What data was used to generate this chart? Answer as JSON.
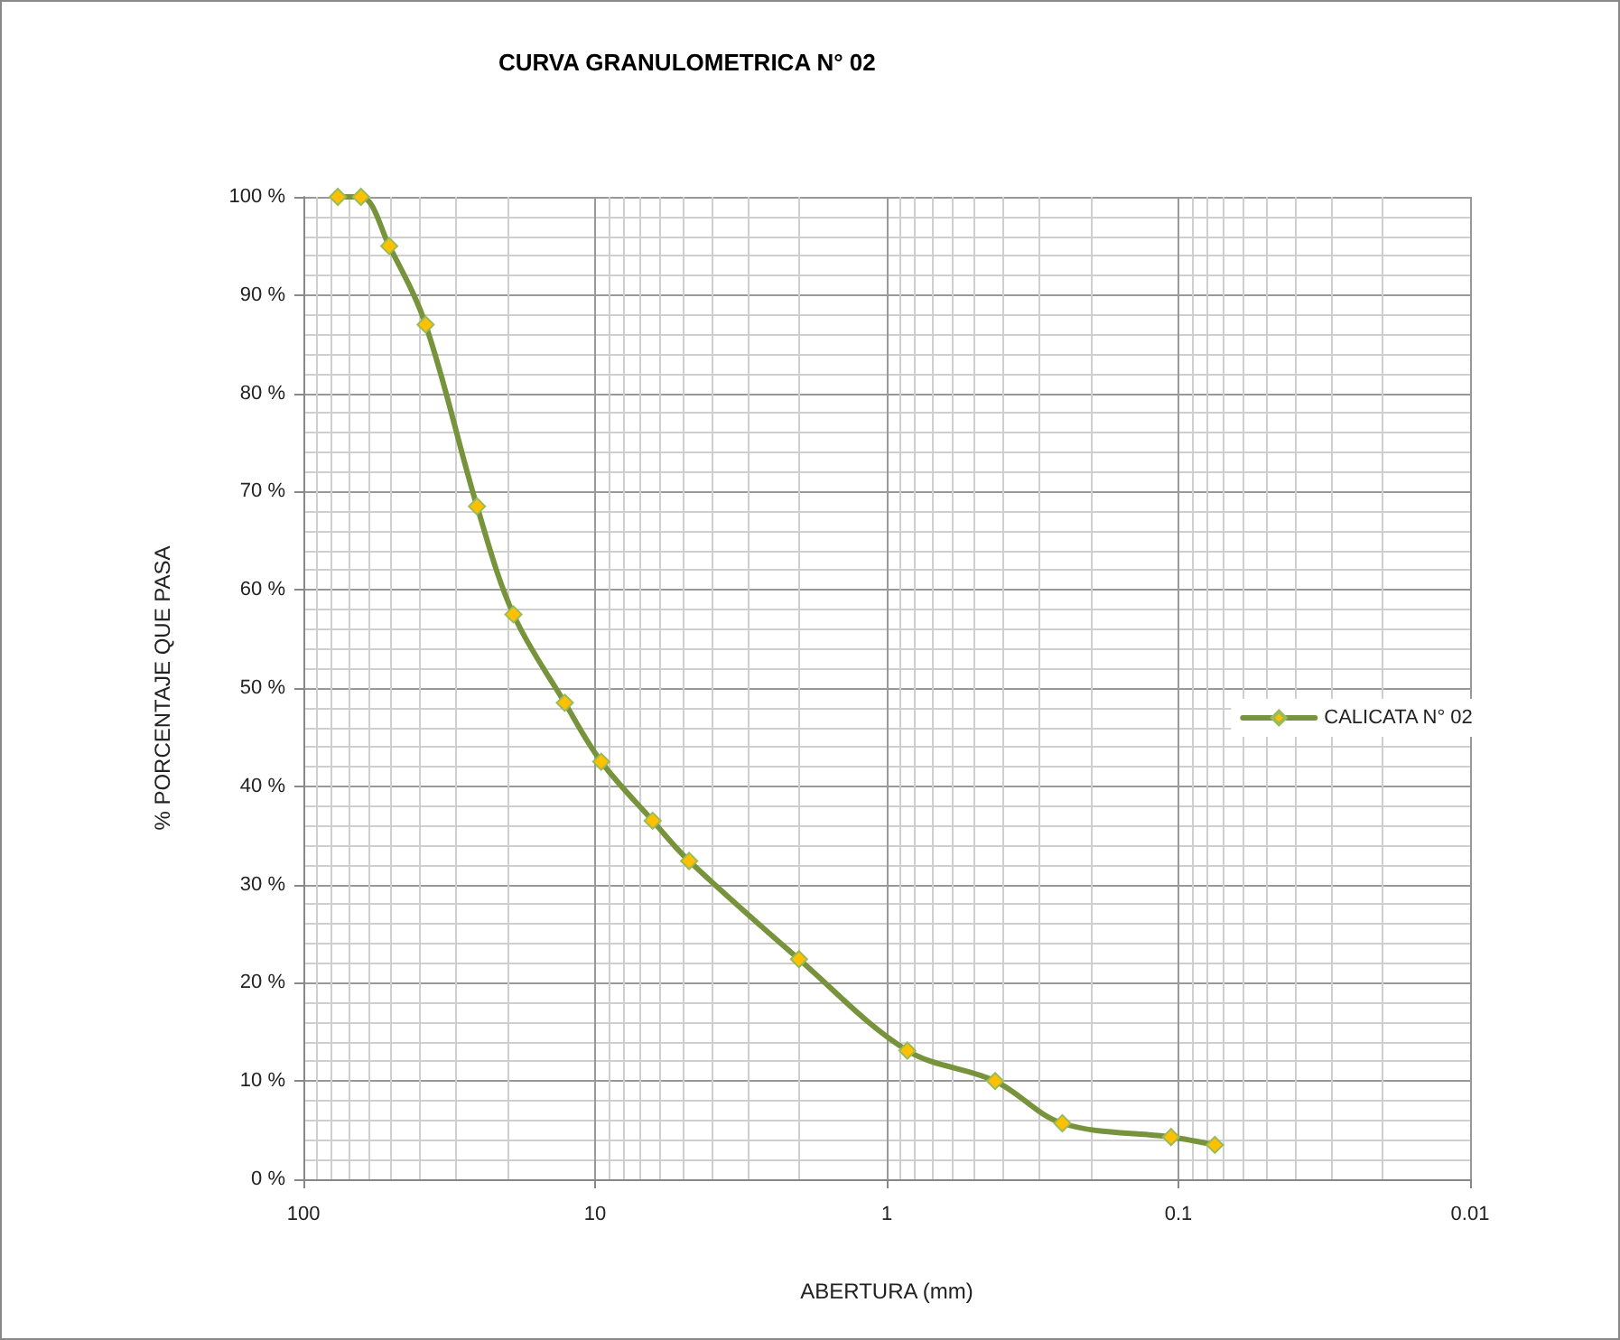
{
  "chart_data": {
    "type": "line",
    "title": "CURVA GRANULOMETRICA N° 02",
    "xlabel": "ABERTURA (mm)",
    "ylabel": "% PORCENTAJE QUE PASA",
    "x": [
      76.2,
      63.5,
      50.8,
      38.1,
      25.4,
      19.05,
      12.7,
      9.525,
      6.35,
      4.76,
      2.0,
      0.85,
      0.425,
      0.25,
      0.106,
      0.075
    ],
    "series": [
      {
        "name": "CALICATA N° 02",
        "color": "#77933c",
        "values": [
          100,
          100,
          95,
          87,
          68.5,
          57.5,
          48.5,
          42.5,
          36.5,
          32.4,
          22.4,
          13.1,
          10,
          5.7,
          4.3,
          3.5
        ]
      }
    ],
    "log": "x",
    "xlim": [
      100,
      0.01
    ],
    "xticks": [
      100,
      10,
      1,
      0.1,
      0.01
    ],
    "ylim": [
      0,
      100
    ],
    "yticks": [
      {
        "value": 0,
        "label": "0 %"
      },
      {
        "value": 10,
        "label": "10 %"
      },
      {
        "value": 20,
        "label": "20 %"
      },
      {
        "value": 30,
        "label": "30 %"
      },
      {
        "value": 40,
        "label": "40 %"
      },
      {
        "value": 50,
        "label": "50 %"
      },
      {
        "value": 60,
        "label": "60 %"
      },
      {
        "value": 70,
        "label": "70 %"
      },
      {
        "value": 80,
        "label": "80 %"
      },
      {
        "value": 90,
        "label": "90 %"
      },
      {
        "value": 100,
        "label": "100 %"
      }
    ],
    "grid": true,
    "legend": "right",
    "marker": "diamond",
    "line_style": "solid"
  }
}
